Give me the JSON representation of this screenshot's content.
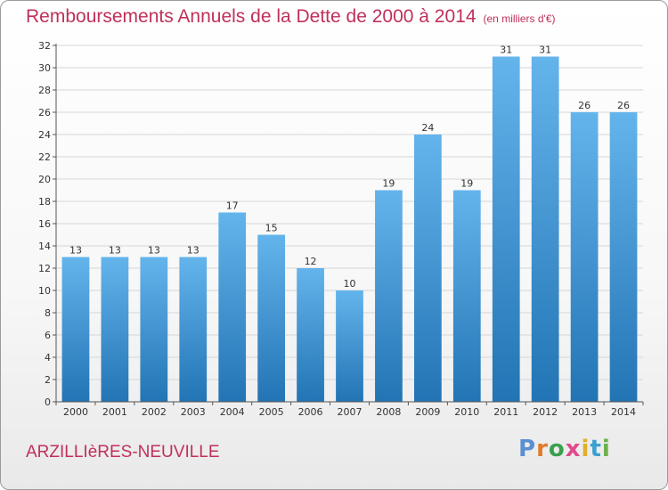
{
  "header": {
    "title": "Remboursements Annuels de la Dette de 2000 à 2014",
    "subtitle": "(en milliers d'€)"
  },
  "footer": {
    "place": "ARZILLIèRES-NEUVILLE",
    "logo": "Proxiti",
    "logo_colors": [
      "#5a8fd0",
      "#e07a2a",
      "#3aa04a",
      "#e04a8a",
      "#e0b02a",
      "#3aa0d0",
      "#6ab04a"
    ]
  },
  "colors": {
    "bar_light": "#64b4ec",
    "bar_dark": "#2274b4",
    "title": "#c0305a"
  },
  "chart_data": {
    "type": "bar",
    "title": "Remboursements Annuels de la Dette de 2000 à 2014",
    "subtitle": "(en milliers d'€)",
    "xlabel": "",
    "ylabel": "",
    "categories": [
      "2000",
      "2001",
      "2002",
      "2003",
      "2004",
      "2005",
      "2006",
      "2007",
      "2008",
      "2009",
      "2010",
      "2011",
      "2012",
      "2013",
      "2014"
    ],
    "values": [
      13,
      13,
      13,
      13,
      17,
      15,
      12,
      10,
      19,
      24,
      19,
      31,
      31,
      26,
      26
    ],
    "ylim": [
      0,
      32
    ],
    "yticks": [
      0,
      2,
      4,
      6,
      8,
      10,
      12,
      14,
      16,
      18,
      20,
      22,
      24,
      26,
      28,
      30,
      32
    ],
    "grid": true
  }
}
